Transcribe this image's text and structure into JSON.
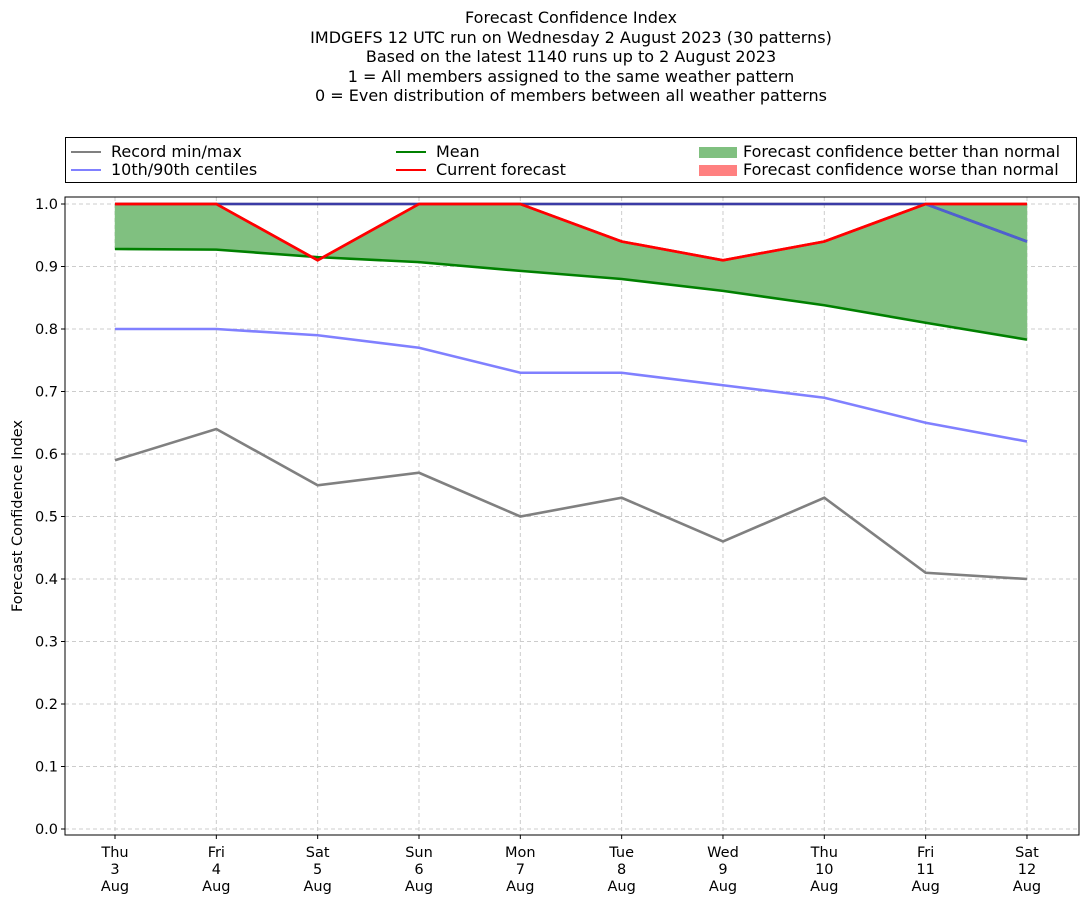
{
  "chart_data": {
    "type": "line",
    "title": "Forecast Confidence Index",
    "subtitle_lines": [
      "IMDGEFS 12 UTC run on Wednesday 2 August 2023 (30 patterns)",
      "Based on the latest 1140 runs up to 2 August 2023",
      "1 = All members assigned to the same weather pattern",
      "0 = Even distribution of members between all weather patterns"
    ],
    "xlabel": "",
    "ylabel": "Forecast Confidence Index",
    "ylim": [
      0.0,
      1.0
    ],
    "yticks": [
      "0.0",
      "0.1",
      "0.2",
      "0.3",
      "0.4",
      "0.5",
      "0.6",
      "0.7",
      "0.8",
      "0.9",
      "1.0"
    ],
    "grid": true,
    "legend_placement": "top (above plot, 3 columns)",
    "categories": [
      [
        "Thu",
        "3",
        "Aug"
      ],
      [
        "Fri",
        "4",
        "Aug"
      ],
      [
        "Sat",
        "5",
        "Aug"
      ],
      [
        "Sun",
        "6",
        "Aug"
      ],
      [
        "Mon",
        "7",
        "Aug"
      ],
      [
        "Tue",
        "8",
        "Aug"
      ],
      [
        "Wed",
        "9",
        "Aug"
      ],
      [
        "Thu",
        "10",
        "Aug"
      ],
      [
        "Fri",
        "11",
        "Aug"
      ],
      [
        "Sat",
        "12",
        "Aug"
      ]
    ],
    "series": [
      {
        "name": "Record min",
        "legend": "Record min/max",
        "color": "#808080",
        "values": [
          0.59,
          0.64,
          0.55,
          0.57,
          0.5,
          0.53,
          0.46,
          0.53,
          0.41,
          0.4
        ]
      },
      {
        "name": "Record max",
        "legend": "Record min/max",
        "color": "#808080",
        "values": [
          1.0,
          1.0,
          1.0,
          1.0,
          1.0,
          1.0,
          1.0,
          1.0,
          1.0,
          1.0
        ]
      },
      {
        "name": "10th centile",
        "legend": "10th/90th centiles",
        "color": "#8080ff",
        "values": [
          0.8,
          0.8,
          0.79,
          0.77,
          0.73,
          0.73,
          0.71,
          0.69,
          0.65,
          0.62
        ]
      },
      {
        "name": "90th centile",
        "legend": "10th/90th centiles",
        "color": "#8080ff",
        "values": [
          1.0,
          1.0,
          1.0,
          1.0,
          1.0,
          1.0,
          1.0,
          1.0,
          1.0,
          0.94
        ]
      },
      {
        "name": "Mean",
        "legend": "Mean",
        "color": "#008000",
        "values": [
          0.928,
          0.927,
          0.915,
          0.907,
          0.893,
          0.88,
          0.861,
          0.838,
          0.81,
          0.783
        ]
      },
      {
        "name": "Current forecast",
        "legend": "Current forecast",
        "color": "#ff0000",
        "values": [
          1.0,
          1.0,
          0.91,
          1.0,
          1.0,
          0.94,
          0.91,
          0.94,
          1.0,
          1.0
        ]
      }
    ],
    "fills": [
      {
        "name": "Forecast confidence better than normal",
        "color": "#80c080",
        "between": [
          "Mean",
          "Current forecast"
        ],
        "where": "forecast above mean"
      },
      {
        "name": "Forecast confidence worse than normal",
        "color": "#ff8080",
        "between": [
          "Mean",
          "Current forecast"
        ],
        "where": "forecast below mean"
      }
    ]
  },
  "legend": {
    "items": [
      {
        "label": "Record min/max",
        "kind": "line",
        "color": "#808080"
      },
      {
        "label": "10th/90th centiles",
        "kind": "line",
        "color": "#8080ff"
      },
      {
        "label": "Mean",
        "kind": "line",
        "color": "#008000"
      },
      {
        "label": "Current forecast",
        "kind": "line",
        "color": "#ff0000"
      },
      {
        "label": "Forecast confidence better than normal",
        "kind": "patch",
        "color": "#80c080"
      },
      {
        "label": "Forecast confidence worse than normal",
        "kind": "patch",
        "color": "#ff8080"
      }
    ]
  }
}
